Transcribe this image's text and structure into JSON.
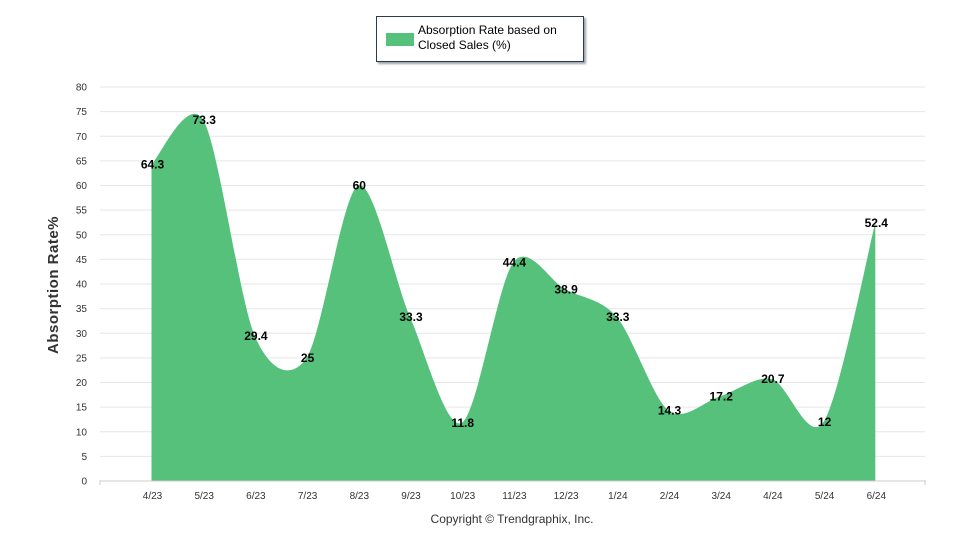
{
  "chart_data": {
    "type": "area",
    "title": "",
    "xlabel": "",
    "ylabel": "Absorption Rate%",
    "ylim": [
      0,
      80
    ],
    "yticks": [
      0,
      5,
      10,
      15,
      20,
      25,
      30,
      35,
      40,
      45,
      50,
      55,
      60,
      65,
      70,
      75,
      80
    ],
    "grid": true,
    "legend": "top-center",
    "categories": [
      "4/23",
      "5/23",
      "6/23",
      "7/23",
      "8/23",
      "9/23",
      "10/23",
      "11/23",
      "12/23",
      "1/24",
      "2/24",
      "3/24",
      "4/24",
      "5/24",
      "6/24"
    ],
    "series": [
      {
        "name": "Absorption Rate based on Closed Sales (%)",
        "color": "#55c17b",
        "values": [
          64.3,
          73.3,
          29.4,
          25,
          60,
          33.3,
          11.8,
          44.4,
          38.9,
          33.3,
          14.3,
          17.2,
          20.7,
          12,
          52.4
        ]
      }
    ]
  },
  "legend": {
    "label": "Absorption Rate based on Closed Sales (%)",
    "color": "#55c17b"
  },
  "footer": {
    "copyright": "Copyright © Trendgraphix, Inc."
  }
}
